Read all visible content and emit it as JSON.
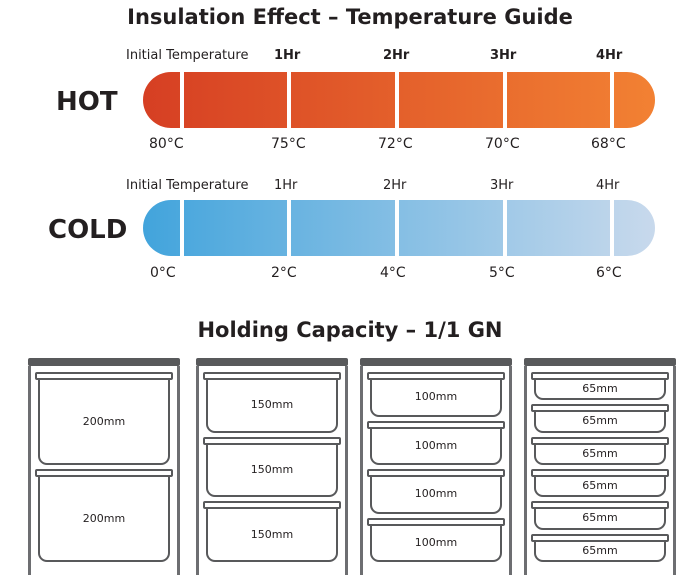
{
  "title": "Insulation Effect – Temperature Guide",
  "hot": {
    "label": "HOT",
    "headers": [
      "Initial Temperature",
      "1Hr",
      "2Hr",
      "3Hr",
      "4Hr"
    ],
    "temps": [
      "80°C",
      "75°C",
      "72°C",
      "70°C",
      "68°C"
    ],
    "gradient": [
      "#d63f23",
      "#f28133"
    ]
  },
  "cold": {
    "label": "COLD",
    "headers": [
      "Initial Temperature",
      "1Hr",
      "2Hr",
      "3Hr",
      "4Hr"
    ],
    "temps": [
      "0°C",
      "2°C",
      "4°C",
      "5°C",
      "6°C"
    ],
    "gradient": [
      "#42a4dc",
      "#c8d9ec"
    ]
  },
  "capacity": {
    "title": "Holding Capacity – 1/1 GN",
    "cabinets": [
      {
        "pans": [
          "200mm",
          "200mm"
        ]
      },
      {
        "pans": [
          "150mm",
          "150mm",
          "150mm"
        ]
      },
      {
        "pans": [
          "100mm",
          "100mm",
          "100mm",
          "100mm"
        ]
      },
      {
        "pans": [
          "65mm",
          "65mm",
          "65mm",
          "65mm",
          "65mm",
          "65mm"
        ]
      }
    ]
  }
}
